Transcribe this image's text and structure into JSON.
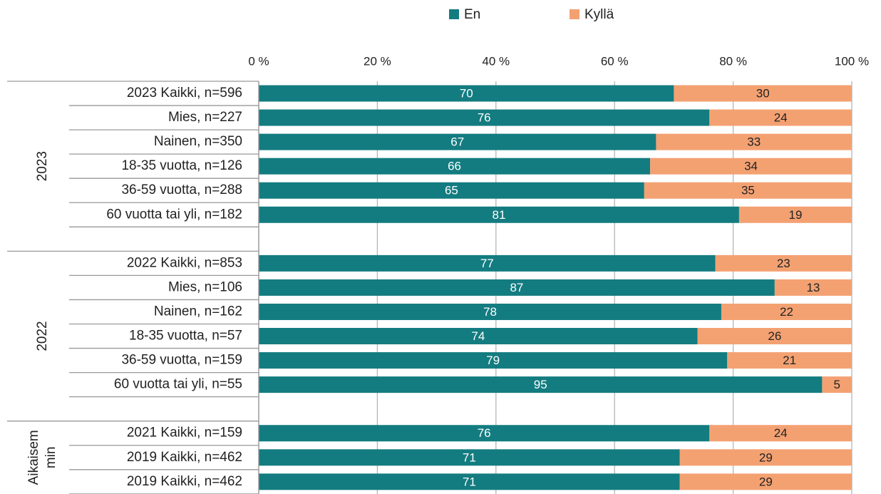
{
  "chart_data": {
    "type": "stacked_bar_horizontal",
    "legend": "top",
    "categories": [
      "2023 Kaikki, n=596",
      "Mies, n=227",
      "Nainen, n=350",
      "18-35 vuotta, n=126",
      "36-59 vuotta, n=288",
      "60 vuotta tai yli, n=182",
      null,
      "2022 Kaikki, n=853",
      "Mies, n=106",
      "Nainen, n=162",
      "18-35 vuotta, n=57",
      "36-59 vuotta, n=159",
      "60 vuotta tai yli, n=55",
      null,
      "2021 Kaikki, n=159",
      "2019 Kaikki, n=462",
      "2019 Kaikki, n=462"
    ],
    "groups": [
      {
        "label": [
          "2023"
        ]
      },
      {
        "label": [
          "2022"
        ]
      },
      {
        "label": [
          "Aikaisem",
          "min"
        ]
      }
    ],
    "series": [
      {
        "name": "En",
        "color": "#137c80",
        "values": [
          70,
          76,
          67,
          66,
          65,
          81,
          null,
          77,
          87,
          78,
          74,
          79,
          95,
          null,
          76,
          71,
          71
        ]
      },
      {
        "name": "Kyllä",
        "color": "#f4a172",
        "values": [
          30,
          24,
          33,
          34,
          35,
          19,
          null,
          23,
          13,
          22,
          26,
          21,
          5,
          null,
          24,
          29,
          29
        ]
      }
    ],
    "xlim": [
      0,
      100
    ],
    "xticks": [
      {
        "value": 0,
        "label": "0 %"
      },
      {
        "value": 20,
        "label": "20 %"
      },
      {
        "value": 40,
        "label": "40 %"
      },
      {
        "value": 60,
        "label": "60 %"
      },
      {
        "value": 80,
        "label": "80 %"
      },
      {
        "value": 100,
        "label": "100 %"
      }
    ],
    "grid": true
  }
}
